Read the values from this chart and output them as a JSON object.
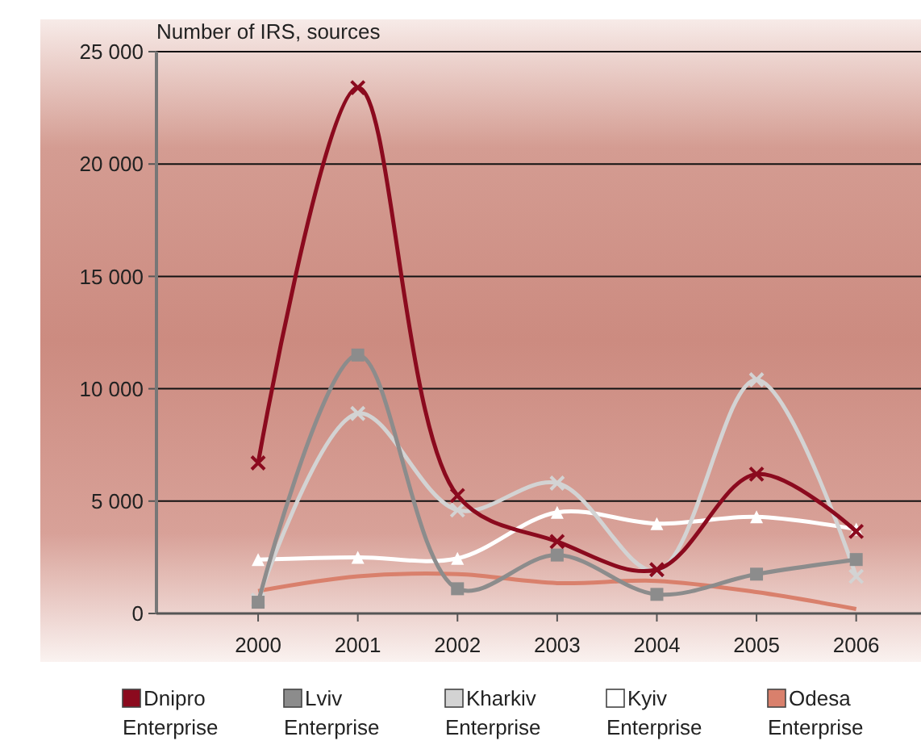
{
  "chart_data": {
    "type": "line",
    "ylabel": "Number of IRS, sources",
    "categories": [
      "2000",
      "2001",
      "2002",
      "2003",
      "2004",
      "2005",
      "2006"
    ],
    "series": [
      {
        "name": "Dnipro Enterprise",
        "color": "#8b0a1e",
        "marker": "cross",
        "values": [
          6700,
          23400,
          5250,
          3200,
          1950,
          6200,
          3650
        ]
      },
      {
        "name": "Lviv Enterprise",
        "color": "#8c8c8c",
        "marker": "square",
        "values": [
          500,
          11500,
          1100,
          2600,
          850,
          1750,
          2400
        ]
      },
      {
        "name": "Kharkiv Enterprise",
        "color": "#d3d3d3",
        "marker": "cross",
        "values": [
          600,
          8900,
          4600,
          5800,
          1900,
          10400,
          1650
        ]
      },
      {
        "name": "Kyiv Enterprise",
        "color": "#ffffff",
        "marker": "triangle",
        "values": [
          2400,
          2500,
          2450,
          4500,
          4000,
          4300,
          3750
        ]
      },
      {
        "name": "Odesa Enterprise",
        "color": "#d9806c",
        "marker": "none",
        "values": [
          1000,
          1650,
          1750,
          1350,
          1450,
          950,
          200
        ]
      }
    ],
    "ylim": [
      0,
      25000
    ],
    "yticks": [
      {
        "value": 0,
        "label": "0"
      },
      {
        "value": 5000,
        "label": "5 000"
      },
      {
        "value": 10000,
        "label": "10 000"
      },
      {
        "value": 15000,
        "label": "15 000"
      },
      {
        "value": 20000,
        "label": "20 000"
      },
      {
        "value": 25000,
        "label": "25 000"
      }
    ],
    "grid": "y",
    "legend": "bottom",
    "line_style": "solid"
  }
}
